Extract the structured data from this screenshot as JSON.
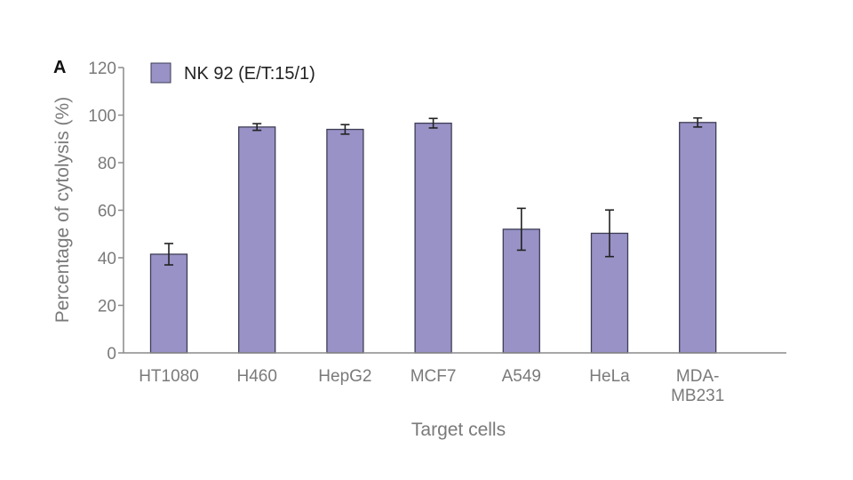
{
  "panel_label": "A",
  "chart_data": {
    "type": "bar",
    "title": "",
    "xlabel": "Target cells",
    "ylabel": "Percentage of cytolysis (%)",
    "ylim": [
      0,
      120
    ],
    "yticks": [
      0,
      20,
      40,
      60,
      80,
      100,
      120
    ],
    "grid": false,
    "legend": {
      "position": "top-left",
      "entries": [
        "NK 92 (E/T:15/1)"
      ]
    },
    "categories": [
      [
        "HT1080"
      ],
      [
        "H460"
      ],
      [
        "HepG2"
      ],
      [
        "MCF7"
      ],
      [
        "A549"
      ],
      [
        "HeLa"
      ],
      [
        "MDA-",
        "MB231"
      ]
    ],
    "series": [
      {
        "name": "NK 92 (E/T:15/1)",
        "color": "#9892c6",
        "values": [
          41.5,
          95,
          94,
          96.6,
          52,
          50.3,
          96.9
        ],
        "errors": [
          4.5,
          1.4,
          2,
          2,
          8.8,
          9.8,
          1.9
        ]
      }
    ],
    "colors": {
      "bar_edge": "#3d3d55",
      "axis": "#8a8a8a",
      "error": "#222222"
    }
  }
}
